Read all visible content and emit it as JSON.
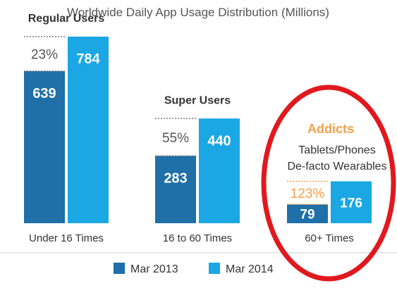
{
  "chart_data": {
    "type": "bar",
    "title": "Worldwide Daily App Usage Distribution (Millions)",
    "categories": [
      "Under 16 Times",
      "16 to 60 Times",
      "60+ Times"
    ],
    "group_titles": [
      "Regular Users",
      "Super Users",
      "Addicts"
    ],
    "series": [
      {
        "name": "Mar 2013",
        "values": [
          639,
          283,
          79
        ]
      },
      {
        "name": "Mar 2014",
        "values": [
          784,
          440,
          176
        ]
      }
    ],
    "growth_labels": [
      "23%",
      "55%",
      "123%"
    ],
    "annotation_lines": [
      "Tablets/Phones",
      "De-facto Wearables"
    ],
    "ylim": [
      0,
      784
    ],
    "colors": {
      "mar2013": "#1f6fa8",
      "mar2014": "#1aa7e3",
      "title": "#555555",
      "label": "#333333",
      "growth": "#555555",
      "addicts": "#f5a04a",
      "highlight": "#e0191f"
    },
    "grid": false,
    "legend_position": "bottom"
  }
}
